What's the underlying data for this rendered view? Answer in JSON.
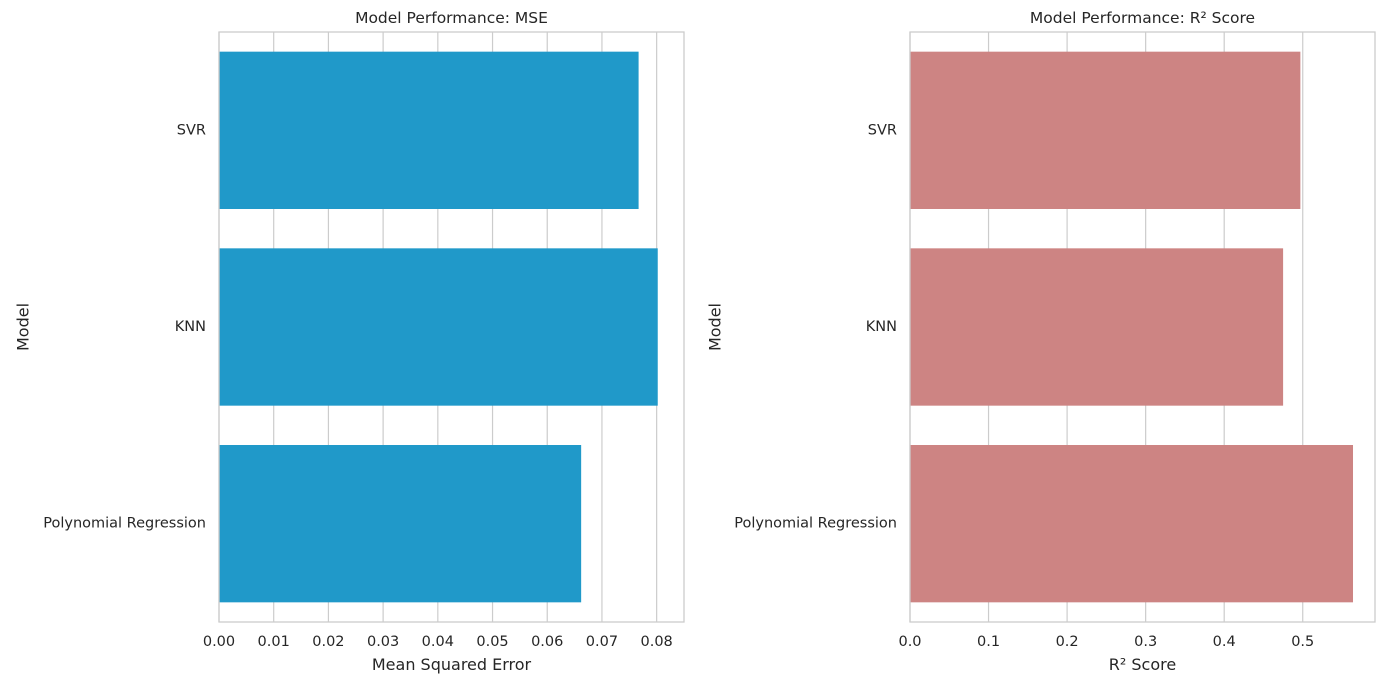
{
  "chart_data": [
    {
      "type": "bar",
      "orientation": "horizontal",
      "title": "Model Performance: MSE",
      "xlabel": "Mean Squared Error",
      "ylabel": "Model",
      "categories": [
        "SVR",
        "KNN",
        "Polynomial Regression"
      ],
      "values": [
        0.0767,
        0.0802,
        0.0662
      ],
      "xlim": [
        0,
        0.085
      ],
      "xticks": [
        0.0,
        0.01,
        0.02,
        0.03,
        0.04,
        0.05,
        0.06,
        0.07,
        0.08
      ],
      "xtick_labels": [
        "0.00",
        "0.01",
        "0.02",
        "0.03",
        "0.04",
        "0.05",
        "0.06",
        "0.07",
        "0.08"
      ],
      "color": "#2099c9",
      "grid": true
    },
    {
      "type": "bar",
      "orientation": "horizontal",
      "title": "Model Performance: R² Score",
      "xlabel": "R² Score",
      "ylabel": "Model",
      "categories": [
        "SVR",
        "KNN",
        "Polynomial Regression"
      ],
      "values": [
        0.497,
        0.475,
        0.564
      ],
      "xlim": [
        0,
        0.592
      ],
      "xticks": [
        0.0,
        0.1,
        0.2,
        0.3,
        0.4,
        0.5
      ],
      "xtick_labels": [
        "0.0",
        "0.1",
        "0.2",
        "0.3",
        "0.4",
        "0.5"
      ],
      "color": "#cd8483",
      "grid": true
    }
  ]
}
